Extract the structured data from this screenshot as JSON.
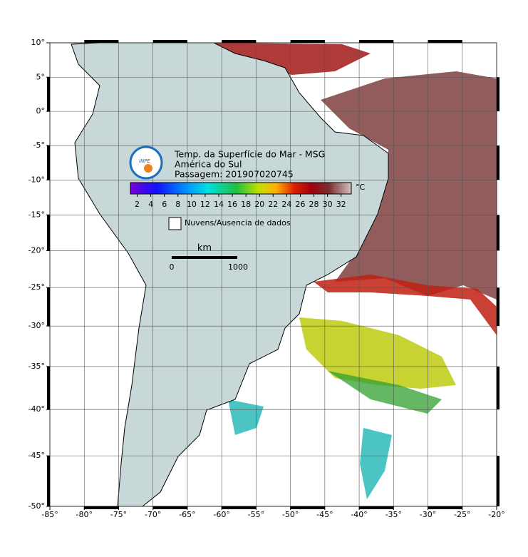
{
  "map": {
    "lonlim": [
      -85,
      -20
    ],
    "latlim": [
      -50,
      10
    ],
    "lon_ticks": [
      {
        "value": -85,
        "label": "-85°"
      },
      {
        "value": -80,
        "label": "-80°"
      },
      {
        "value": -75,
        "label": "-75°"
      },
      {
        "value": -70,
        "label": "-70°"
      },
      {
        "value": -65,
        "label": "-65°"
      },
      {
        "value": -60,
        "label": "-60°"
      },
      {
        "value": -55,
        "label": "-55°"
      },
      {
        "value": -50,
        "label": "-50°"
      },
      {
        "value": -45,
        "label": "-45°"
      },
      {
        "value": -40,
        "label": "-40°"
      },
      {
        "value": -35,
        "label": "-35°"
      },
      {
        "value": -30,
        "label": "-30°"
      },
      {
        "value": -25,
        "label": "-25°"
      },
      {
        "value": -20,
        "label": "-20°"
      }
    ],
    "lat_ticks": [
      {
        "value": 10,
        "label": "10°"
      },
      {
        "value": 5,
        "label": "5°"
      },
      {
        "value": 0,
        "label": "0°"
      },
      {
        "value": -5,
        "label": "-5°"
      },
      {
        "value": -10,
        "label": "-10°"
      },
      {
        "value": -15,
        "label": "-15°"
      },
      {
        "value": -20,
        "label": "-20°"
      },
      {
        "value": -25,
        "label": "-25°"
      },
      {
        "value": -30,
        "label": "-30°"
      },
      {
        "value": -35,
        "label": "-35°"
      },
      {
        "value": -40,
        "label": "-40°"
      },
      {
        "value": -45,
        "label": "-45°"
      },
      {
        "value": -50,
        "label": "-50°"
      }
    ],
    "title": [
      "Temp. da Superfície do Mar - MSG",
      "América do Sul",
      "Passagem: 201907020745"
    ],
    "logo_text": "INPE",
    "colorbar": {
      "range": [
        1,
        33.5
      ],
      "ticks": [
        2,
        4,
        6,
        8,
        10,
        12,
        14,
        16,
        18,
        20,
        22,
        24,
        26,
        28,
        30,
        32
      ],
      "unit": "°C"
    },
    "legend": "Nuvens/Ausencia de dados",
    "scale_bar": {
      "unit": "km",
      "start": "0",
      "end": "1000"
    }
  }
}
